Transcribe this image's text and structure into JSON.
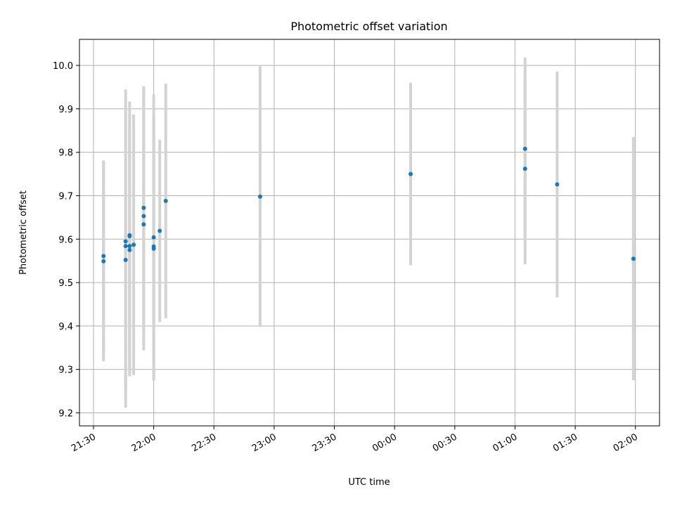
{
  "chart_data": {
    "type": "scatter",
    "title": "Photometric offset variation",
    "xlabel": "UTC time",
    "ylabel": "Photometric offset",
    "x_ticks": [
      "21:30",
      "22:00",
      "22:30",
      "23:00",
      "23:30",
      "00:00",
      "00:30",
      "01:00",
      "01:30",
      "02:00"
    ],
    "y_ticks": [
      "9.2",
      "9.3",
      "9.4",
      "9.5",
      "9.6",
      "9.7",
      "9.8",
      "9.9",
      "10.0"
    ],
    "xlim": [
      "21:23",
      "02:12"
    ],
    "ylim": [
      9.17,
      10.06
    ],
    "grid": true,
    "colors": {
      "point": "#1f77b4",
      "errorbar": "#d3d3d3",
      "grid": "#b0b0b0"
    },
    "points": [
      {
        "x": "21:35",
        "y": 9.549,
        "yerr": 0.23
      },
      {
        "x": "21:35",
        "y": 9.561,
        "yerr": 0.22
      },
      {
        "x": "21:46",
        "y": 9.552,
        "yerr": 0.34
      },
      {
        "x": "21:46",
        "y": 9.595,
        "yerr": 0.35
      },
      {
        "x": "21:46",
        "y": 9.584,
        "yerr": 0.32
      },
      {
        "x": "21:48",
        "y": 9.575,
        "yerr": 0.29
      },
      {
        "x": "21:48",
        "y": 9.584,
        "yerr": 0.3
      },
      {
        "x": "21:48",
        "y": 9.607,
        "yerr": 0.31
      },
      {
        "x": "21:48",
        "y": 9.609,
        "yerr": 0.25
      },
      {
        "x": "21:50",
        "y": 9.587,
        "yerr": 0.3
      },
      {
        "x": "21:55",
        "y": 9.634,
        "yerr": 0.29
      },
      {
        "x": "21:55",
        "y": 9.653,
        "yerr": 0.29
      },
      {
        "x": "21:55",
        "y": 9.672,
        "yerr": 0.28
      },
      {
        "x": "22:00",
        "y": 9.604,
        "yerr": 0.33
      },
      {
        "x": "22:00",
        "y": 9.583,
        "yerr": 0.3
      },
      {
        "x": "22:00",
        "y": 9.578,
        "yerr": 0.3
      },
      {
        "x": "22:03",
        "y": 9.619,
        "yerr": 0.21
      },
      {
        "x": "22:06",
        "y": 9.688,
        "yerr": 0.27
      },
      {
        "x": "22:53",
        "y": 9.698,
        "yerr": 0.3
      },
      {
        "x": "00:08",
        "y": 9.75,
        "yerr": 0.21
      },
      {
        "x": "01:05",
        "y": 9.808,
        "yerr": 0.21
      },
      {
        "x": "01:05",
        "y": 9.762,
        "yerr": 0.22
      },
      {
        "x": "01:21",
        "y": 9.726,
        "yerr": 0.26
      },
      {
        "x": "01:59",
        "y": 9.555,
        "yerr": 0.28
      }
    ]
  }
}
